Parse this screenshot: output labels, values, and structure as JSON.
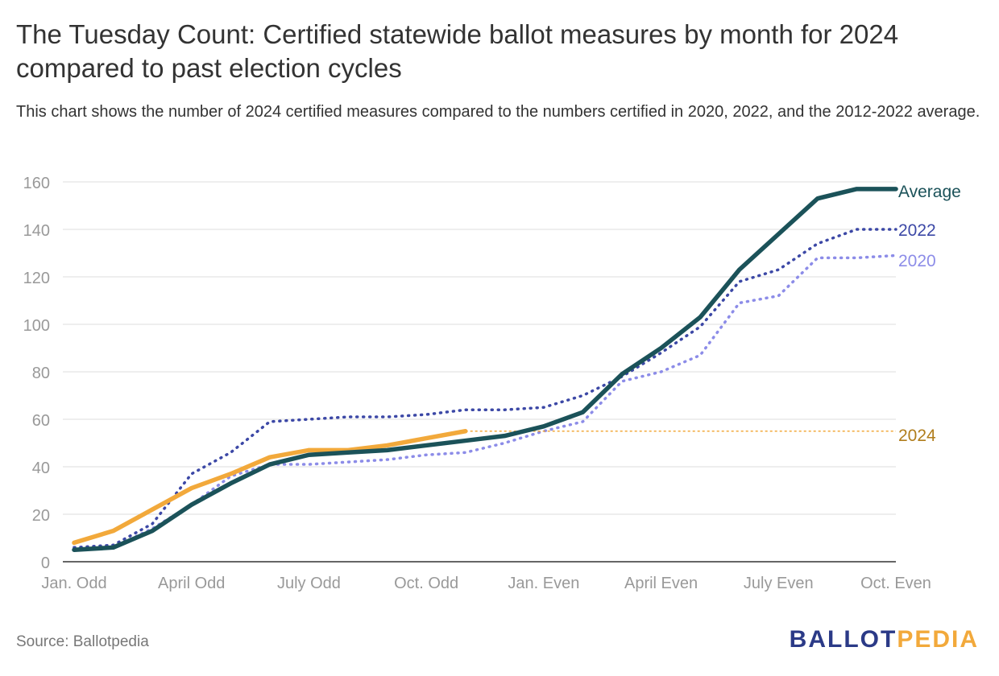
{
  "header": {
    "title": "The Tuesday Count: Certified statewide ballot measures by month for 2024 compared to past election cycles",
    "subtitle": "This chart shows the number of 2024 certified measures compared to the numbers certified in 2020, 2022, and the 2012-2022 average."
  },
  "footer": {
    "source": "Source: Ballotpedia",
    "logo_part1": "BALLOT",
    "logo_part2": "PEDIA"
  },
  "colors": {
    "average": "#1b5259",
    "y2022": "#3c48a6",
    "y2020": "#8c8ce8",
    "y2024": "#f2a93b",
    "logo_part1": "#2b3a87",
    "logo_part2": "#f2a93b"
  },
  "chart_data": {
    "type": "line",
    "ylim": [
      0,
      160
    ],
    "y_ticks": [
      0,
      20,
      40,
      60,
      80,
      100,
      120,
      140,
      160
    ],
    "x_tick_labels": [
      "Jan. Odd",
      "April Odd",
      "July Odd",
      "Oct. Odd",
      "Jan. Even",
      "April Even",
      "July Even",
      "Oct. Even"
    ],
    "x_tick_positions": [
      0,
      3,
      6,
      9,
      12,
      15,
      18,
      21
    ],
    "grid": true,
    "series": [
      {
        "name": "Average",
        "style": "solid",
        "x": [
          0,
          1,
          2,
          3,
          4,
          5,
          6,
          7,
          8,
          9,
          10,
          11,
          12,
          13,
          14,
          15,
          16,
          17,
          18,
          19,
          20,
          21
        ],
        "values": [
          5,
          6,
          13,
          24,
          33,
          41,
          45,
          46,
          47,
          49,
          51,
          53,
          57,
          63,
          79,
          90,
          103,
          123,
          138,
          153,
          157,
          157
        ]
      },
      {
        "name": "2022",
        "style": "dotted",
        "x": [
          0,
          1,
          2,
          3,
          4,
          5,
          6,
          7,
          8,
          9,
          10,
          11,
          12,
          13,
          14,
          15,
          16,
          17,
          18,
          19,
          20,
          21
        ],
        "values": [
          6,
          7,
          16,
          37,
          46,
          59,
          60,
          61,
          61,
          62,
          64,
          64,
          65,
          70,
          78,
          88,
          99,
          118,
          123,
          134,
          140,
          140
        ]
      },
      {
        "name": "2020",
        "style": "dotted",
        "x": [
          0,
          1,
          2,
          3,
          4,
          5,
          6,
          7,
          8,
          9,
          10,
          11,
          12,
          13,
          14,
          15,
          16,
          17,
          18,
          19,
          20,
          21
        ],
        "values": [
          6,
          6,
          14,
          24,
          36,
          41,
          41,
          42,
          43,
          45,
          46,
          50,
          55,
          59,
          76,
          80,
          87,
          109,
          112,
          128,
          128,
          129
        ]
      },
      {
        "name": "2024",
        "style": "solid",
        "x": [
          0,
          1,
          2,
          3,
          4,
          5,
          6,
          7,
          8,
          9,
          10
        ],
        "values": [
          8,
          13,
          22,
          31,
          37,
          44,
          47,
          47,
          49,
          52,
          55
        ],
        "reference_line": {
          "value": 55,
          "from_x": 10,
          "to_x": 21,
          "style": "dotted"
        }
      }
    ]
  }
}
